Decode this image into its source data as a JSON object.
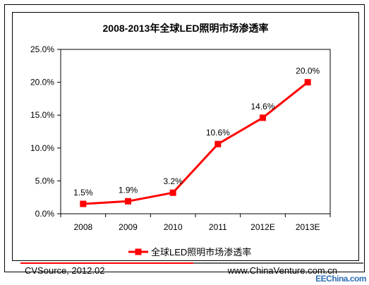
{
  "chart_data": {
    "type": "line",
    "title": "2008-2013年全球LED照明市场渗透率",
    "categories": [
      "2008",
      "2009",
      "2010",
      "2011",
      "2012E",
      "2013E"
    ],
    "series": [
      {
        "name": "全球LED照明市场渗透率",
        "values": [
          1.5,
          1.9,
          3.2,
          10.6,
          14.6,
          20.0
        ],
        "data_labels": [
          "1.5%",
          "1.9%",
          "3.2%",
          "10.6%",
          "14.6%",
          "20.0%"
        ],
        "color": "#ff0000"
      }
    ],
    "ylim": [
      0,
      25
    ],
    "yticks": [
      0,
      5,
      10,
      15,
      20,
      25
    ],
    "ytick_labels": [
      "0.0%",
      "5.0%",
      "10.0%",
      "15.0%",
      "20.0%",
      "25.0%"
    ],
    "grid": false,
    "legend_position": "bottom"
  },
  "footer": {
    "source": "CVSource, 2012.02",
    "site": "www.ChinaVenture.com.cn",
    "accent_color": "#ff0000"
  },
  "watermark": "EEChina.com"
}
